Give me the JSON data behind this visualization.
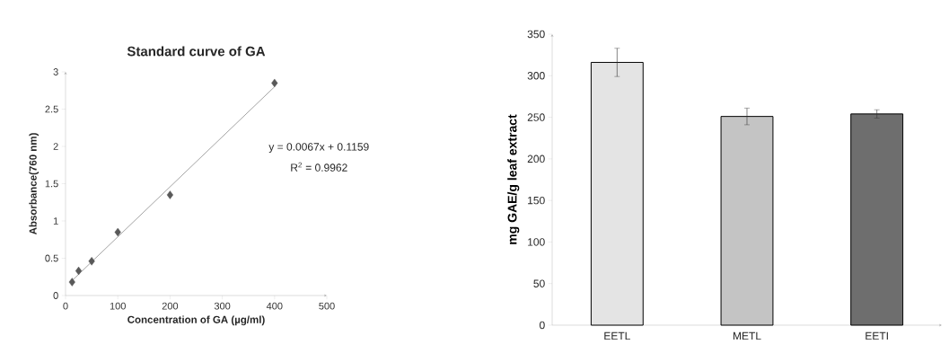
{
  "chart_data": [
    {
      "type": "scatter",
      "title": "Standard curve of GA",
      "xlabel": "Concentration of GA (µg/ml)",
      "ylabel": "Absorbance(760 nm)",
      "series": [
        {
          "type": "scatter",
          "color": "#595959",
          "x": [
            12.5,
            25,
            50,
            100,
            200,
            400
          ],
          "values": [
            0.18,
            0.33,
            0.46,
            0.85,
            1.35,
            2.85
          ]
        },
        {
          "type": "line",
          "color": "#8c8c8c",
          "marker": "none",
          "x": [
            12.5,
            400
          ],
          "values": [
            0.2,
            2.8
          ]
        }
      ],
      "marker": "diamond",
      "xlim": [
        0,
        500
      ],
      "xticks": [
        0,
        100,
        200,
        300,
        400,
        500
      ],
      "ylim": [
        0,
        3
      ],
      "yticks": [
        0,
        0.5,
        1,
        1.5,
        2,
        2.5,
        3
      ],
      "grid": false,
      "annotations": [
        "y = 0.0067x + 0.1159",
        "R$^{2}$ = 0.9962"
      ]
    },
    {
      "type": "bar",
      "ylabel": "mg GAE/g leaf extract",
      "categories": [
        "EETL",
        "METL",
        "EETI"
      ],
      "values": [
        316,
        251,
        254
      ],
      "errors": [
        17,
        10,
        5
      ],
      "colors": [
        "#e4e4e4",
        "#c4c4c4",
        "#6e6e6e"
      ],
      "ylim": [
        0,
        350
      ],
      "yticks": [
        0,
        50,
        100,
        150,
        200,
        250,
        300,
        350
      ],
      "grid": false
    }
  ]
}
